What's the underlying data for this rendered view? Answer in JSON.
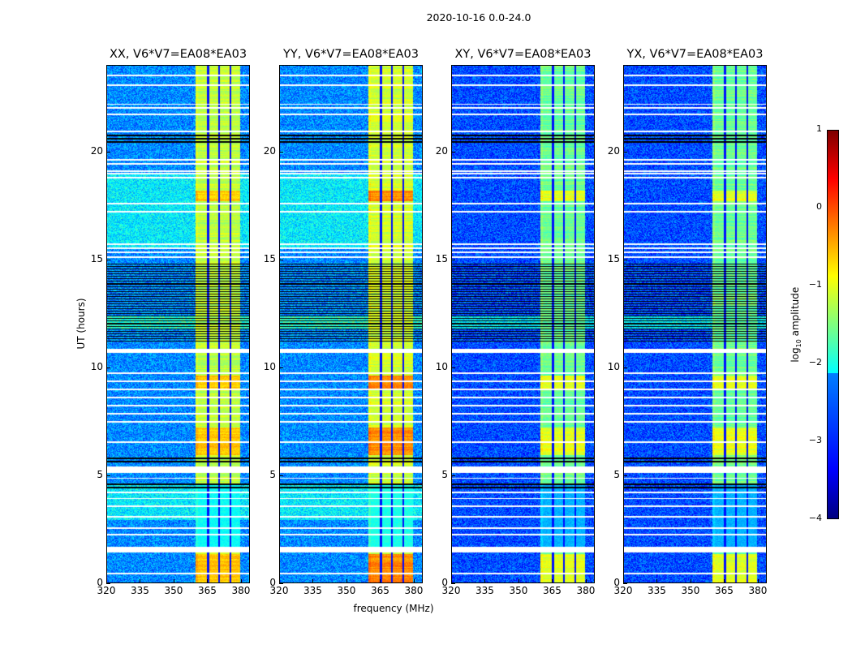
{
  "chart_data": {
    "type": "heatmap",
    "title": "2020-10-16 0.0-24.0",
    "xlabel": "frequency (MHz)",
    "ylabel": "UT (hours)",
    "xlim": [
      320,
      384
    ],
    "ylim": [
      0,
      24
    ],
    "xticks": [
      "320",
      "335",
      "350",
      "365",
      "380"
    ],
    "xtick_values": [
      320,
      335,
      350,
      365,
      380
    ],
    "yticks": [
      "0",
      "5",
      "10",
      "15",
      "20"
    ],
    "ytick_values": [
      0,
      5,
      10,
      15,
      20
    ],
    "colorbar": {
      "label_prefix": "log",
      "label_sub": "10",
      "label_suffix": " amplitude",
      "range": [
        -4,
        1
      ],
      "ticks": [
        "1",
        "0",
        "−1",
        "−2",
        "−3",
        "−4"
      ],
      "tick_values": [
        1,
        0,
        -1,
        -2,
        -3,
        -4
      ],
      "colormap": "jet"
    },
    "rfi_band_mhz": [
      360,
      380
    ],
    "band_gaps_mhz": [
      365.5,
      370.5,
      375.5
    ],
    "flagged_white_hours": [
      23.56,
      23.11,
      22.21,
      22.03,
      21.73,
      20.94,
      19.62,
      19.44,
      19.1,
      18.99,
      18.8,
      17.6,
      17.22,
      15.72,
      15.53,
      15.35,
      15.12,
      9.72,
      9.34,
      8.97,
      8.59,
      8.22,
      7.84,
      7.47,
      6.53,
      4.84,
      4.17,
      3.9,
      3.53,
      3.04,
      2.51,
      2.21,
      0.41
    ],
    "flagged_white_ranges": [
      [
        10.66,
        10.84
      ],
      [
        5.1,
        5.4
      ],
      [
        1.39,
        1.65
      ]
    ],
    "black_ranges": [
      [
        20.4,
        20.86
      ],
      [
        5.5,
        5.8
      ],
      [
        4.35,
        4.65
      ]
    ],
    "black_line_region": [
      11.2,
      14.8
    ],
    "panels": [
      {
        "title": "XX, V6*V7=EA08*EA03",
        "background_level": -2.7,
        "band_level": -1.2,
        "bright_spots": -0.6
      },
      {
        "title": "YY, V6*V7=EA08*EA03",
        "background_level": -2.7,
        "band_level": -1.1,
        "bright_spots": -0.3
      },
      {
        "title": "XY, V6*V7=EA08*EA03",
        "background_level": -3.0,
        "band_level": -1.6,
        "bright_spots": -1.0
      },
      {
        "title": "YX, V6*V7=EA08*EA03",
        "background_level": -3.0,
        "band_level": -1.6,
        "bright_spots": -1.0
      }
    ]
  }
}
